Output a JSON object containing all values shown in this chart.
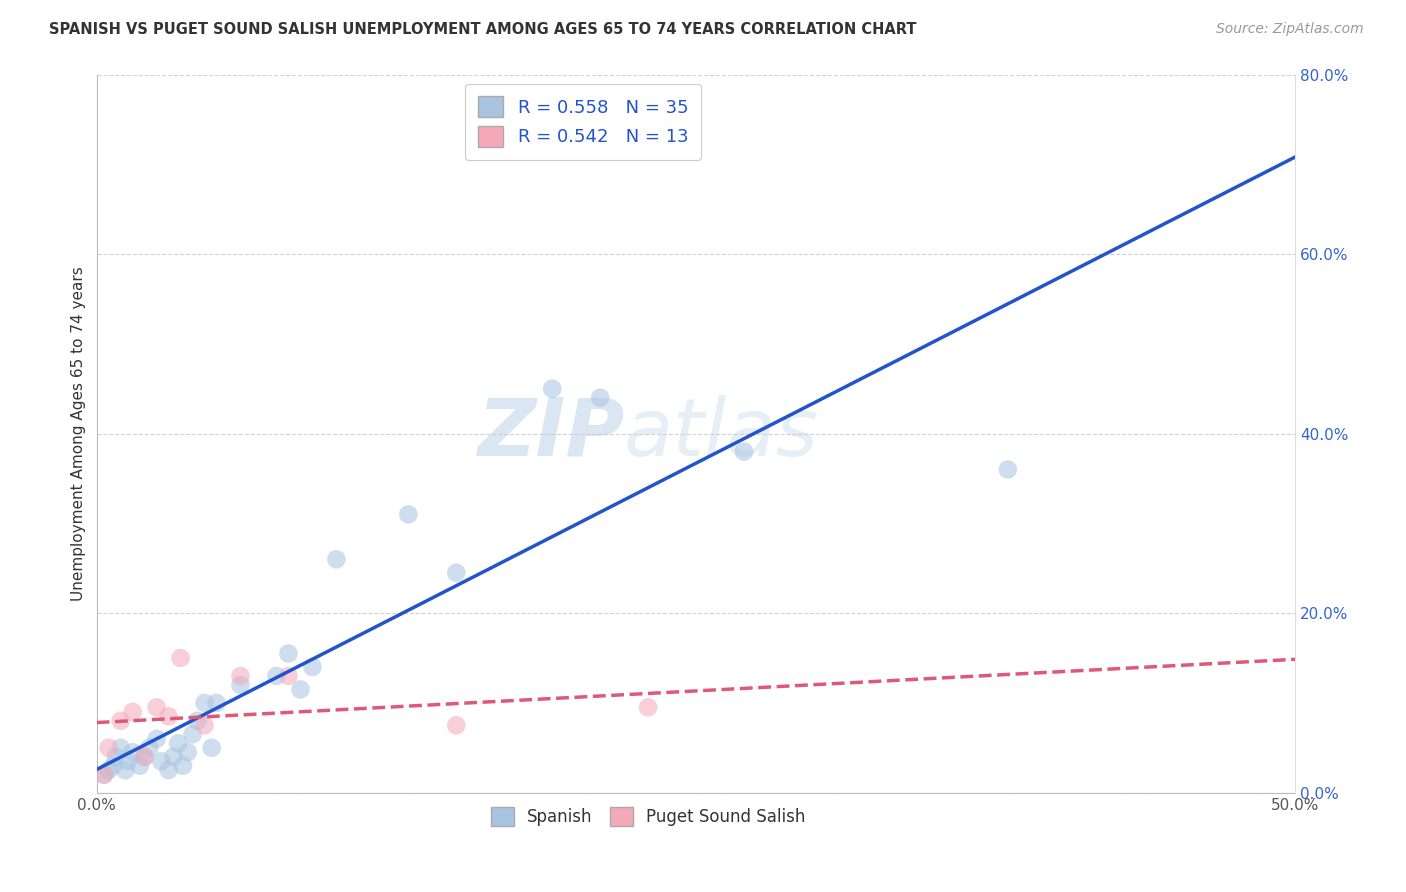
{
  "title": "SPANISH VS PUGET SOUND SALISH UNEMPLOYMENT AMONG AGES 65 TO 74 YEARS CORRELATION CHART",
  "source": "Source: ZipAtlas.com",
  "xlabel": "",
  "ylabel": "Unemployment Among Ages 65 to 74 years",
  "xlim": [
    0,
    0.5
  ],
  "ylim": [
    0,
    0.8
  ],
  "xticks": [
    0.0,
    0.1,
    0.2,
    0.3,
    0.4,
    0.5
  ],
  "yticks": [
    0.0,
    0.2,
    0.4,
    0.6,
    0.8
  ],
  "xtick_labels": [
    "0.0%",
    "",
    "",
    "",
    "",
    "50.0%"
  ],
  "ytick_labels_right": [
    "0.0%",
    "20.0%",
    "40.0%",
    "60.0%",
    "80.0%"
  ],
  "spanish_color": "#a8c4e0",
  "salish_color": "#f4a8b8",
  "spanish_line_color": "#2255cc",
  "salish_line_color": "#e05878",
  "spanish_R": 0.558,
  "spanish_N": 35,
  "salish_R": 0.542,
  "salish_N": 13,
  "spanish_x": [
    0.003,
    0.005,
    0.007,
    0.008,
    0.01,
    0.012,
    0.013,
    0.015,
    0.018,
    0.02,
    0.022,
    0.025,
    0.027,
    0.03,
    0.032,
    0.034,
    0.036,
    0.038,
    0.04,
    0.042,
    0.045,
    0.048,
    0.05,
    0.06,
    0.075,
    0.08,
    0.085,
    0.09,
    0.1,
    0.13,
    0.15,
    0.19,
    0.21,
    0.27,
    0.38
  ],
  "spanish_y": [
    0.02,
    0.025,
    0.03,
    0.04,
    0.05,
    0.025,
    0.035,
    0.045,
    0.03,
    0.04,
    0.05,
    0.06,
    0.035,
    0.025,
    0.04,
    0.055,
    0.03,
    0.045,
    0.065,
    0.08,
    0.1,
    0.05,
    0.1,
    0.12,
    0.13,
    0.155,
    0.115,
    0.14,
    0.26,
    0.31,
    0.245,
    0.45,
    0.44,
    0.38,
    0.36
  ],
  "salish_x": [
    0.003,
    0.005,
    0.01,
    0.015,
    0.02,
    0.025,
    0.03,
    0.035,
    0.045,
    0.06,
    0.08,
    0.15,
    0.23
  ],
  "salish_y": [
    0.02,
    0.05,
    0.08,
    0.09,
    0.04,
    0.095,
    0.085,
    0.15,
    0.075,
    0.13,
    0.13,
    0.075,
    0.095
  ],
  "watermark_zip": "ZIP",
  "watermark_atlas": "atlas",
  "background_color": "#ffffff",
  "grid_color": "#cccccc",
  "title_fontsize": 10.5,
  "source_fontsize": 10,
  "axis_label_fontsize": 11,
  "tick_fontsize": 11,
  "legend_fontsize": 13,
  "marker_size": 180,
  "marker_alpha": 0.55
}
